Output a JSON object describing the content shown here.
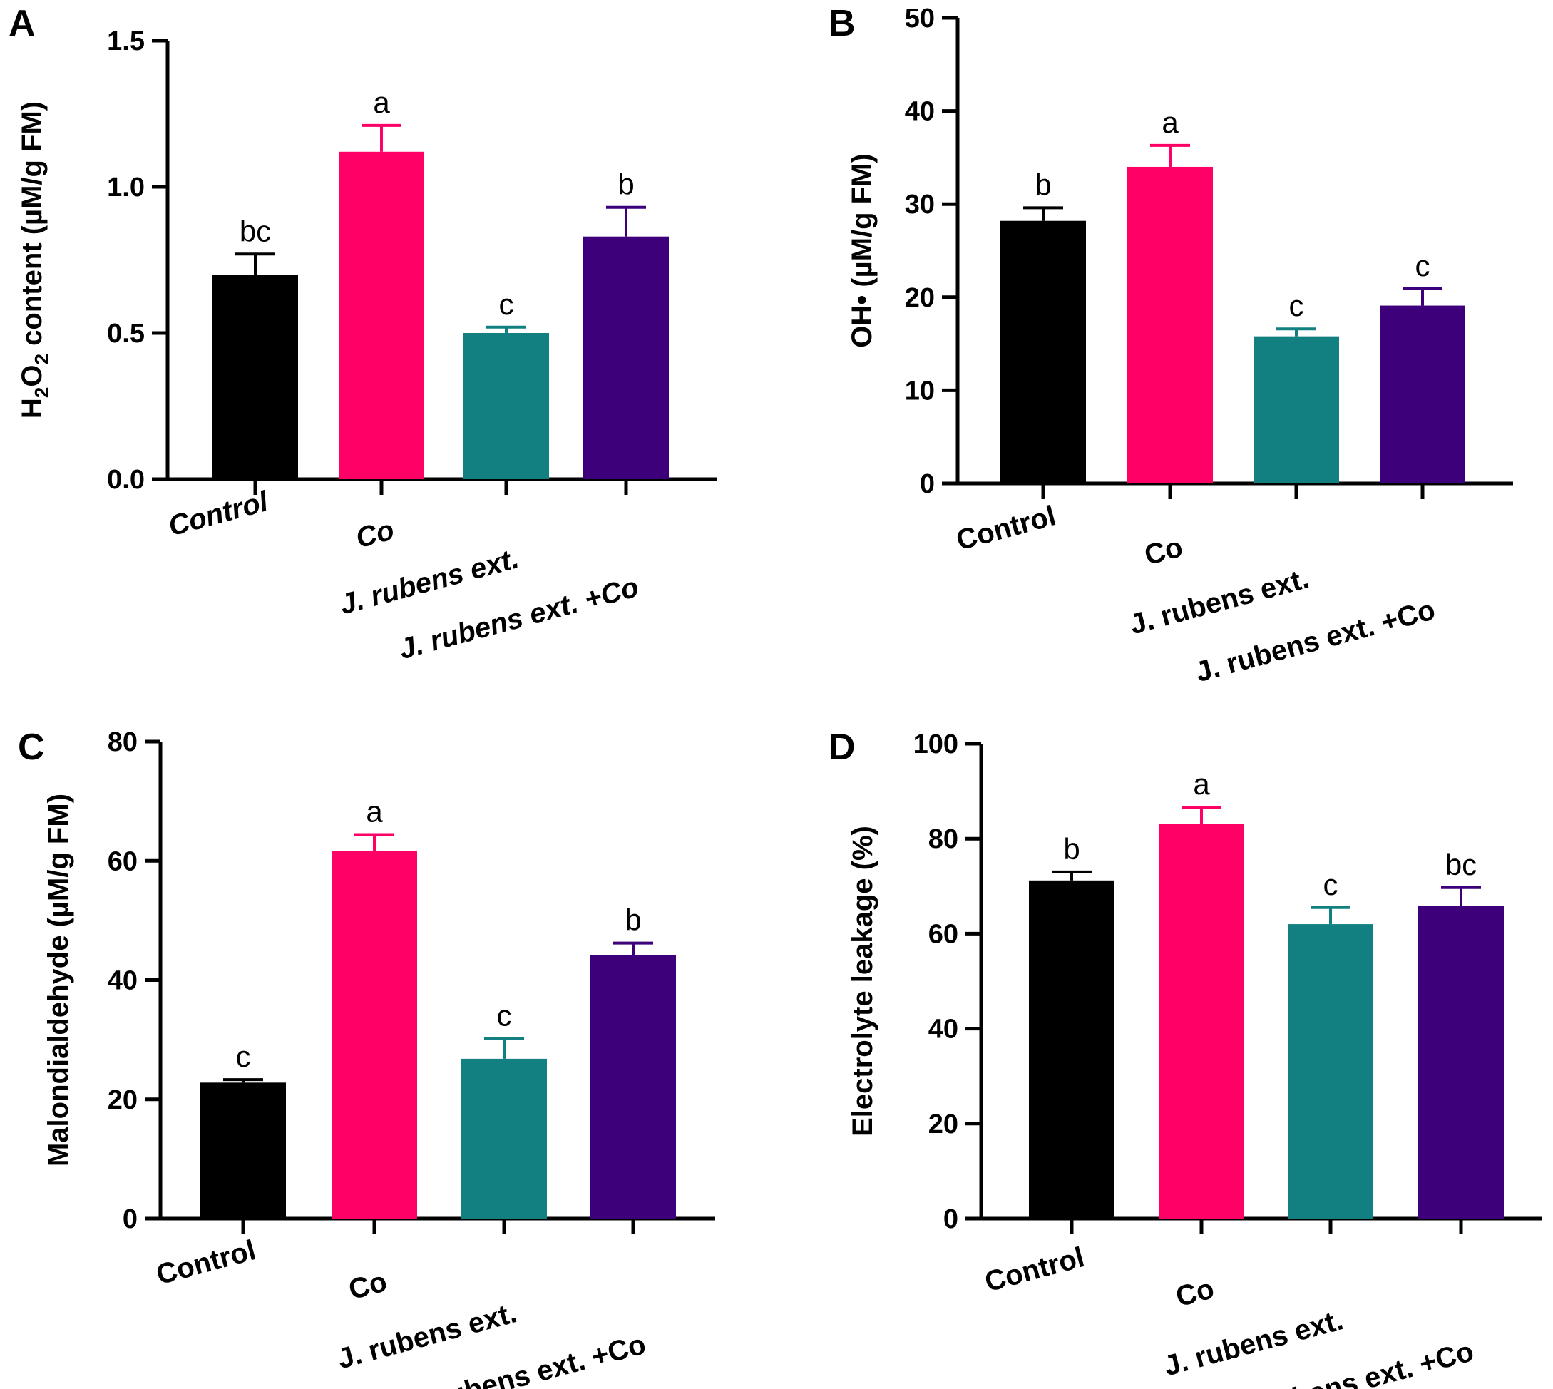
{
  "figure": {
    "colors": {
      "control": "#000000",
      "co": "#ff0066",
      "jrubens": "#128080",
      "jrubens_co": "#3d007a"
    }
  },
  "chart_data": [
    {
      "panel": "A",
      "type": "bar",
      "title": "",
      "ylabel_parts": [
        "H",
        "2",
        "O",
        "2",
        " content (µM/g FM)"
      ],
      "xlabel": "",
      "categories": [
        "Control",
        "Co",
        "J. rubens ext.",
        "J. rubens ext. +Co"
      ],
      "values": [
        0.7,
        1.12,
        0.5,
        0.83
      ],
      "errors": [
        0.07,
        0.09,
        0.02,
        0.1
      ],
      "significance": [
        "bc",
        "a",
        "c",
        "b"
      ],
      "ylim": [
        0,
        1.5
      ],
      "yticks": [
        0,
        0.5,
        1.0,
        1.5
      ],
      "ytick_labels": [
        "0.0",
        "0.5",
        "1.0",
        "1.5"
      ],
      "italic_labels": true
    },
    {
      "panel": "B",
      "type": "bar",
      "title": "",
      "ylabel": "OH•  (µM/g FM)",
      "xlabel": "",
      "categories": [
        "Control",
        "Co",
        "J. rubens ext.",
        "J. rubens ext. +Co"
      ],
      "values": [
        28.2,
        34.0,
        15.8,
        19.1
      ],
      "errors": [
        1.4,
        2.3,
        0.8,
        1.8
      ],
      "significance": [
        "b",
        "a",
        "c",
        "c"
      ],
      "ylim": [
        0,
        50
      ],
      "yticks": [
        0,
        10,
        20,
        30,
        40,
        50
      ],
      "ytick_labels": [
        "0",
        "10",
        "20",
        "30",
        "40",
        "50"
      ],
      "italic_labels": false
    },
    {
      "panel": "C",
      "type": "bar",
      "title": "",
      "ylabel": "Malondialdehyde  (µM/g FM)",
      "xlabel": "",
      "categories": [
        "Control",
        "Co",
        "J. rubens ext.",
        "J. rubens ext. +Co"
      ],
      "values": [
        22.8,
        61.6,
        26.8,
        44.2
      ],
      "errors": [
        0.5,
        2.8,
        3.4,
        2.0
      ],
      "significance": [
        "c",
        "a",
        "c",
        "b"
      ],
      "ylim": [
        0,
        80
      ],
      "yticks": [
        0,
        20,
        40,
        60,
        80
      ],
      "ytick_labels": [
        "0",
        "20",
        "40",
        "60",
        "80"
      ],
      "italic_labels": false
    },
    {
      "panel": "D",
      "type": "bar",
      "title": "",
      "ylabel": "Electrolyte leakage (%)",
      "xlabel": "",
      "categories": [
        "Control",
        "Co",
        "J. rubens ext.",
        "J. rubens ext. +Co"
      ],
      "values": [
        71.2,
        83.1,
        62.0,
        65.9
      ],
      "errors": [
        1.8,
        3.5,
        3.5,
        3.8
      ],
      "significance": [
        "b",
        "a",
        "c",
        "bc"
      ],
      "ylim": [
        0,
        100
      ],
      "yticks": [
        0,
        20,
        40,
        60,
        80,
        100
      ],
      "ytick_labels": [
        "0",
        "20",
        "40",
        "60",
        "80",
        "100"
      ],
      "italic_labels": false
    }
  ]
}
